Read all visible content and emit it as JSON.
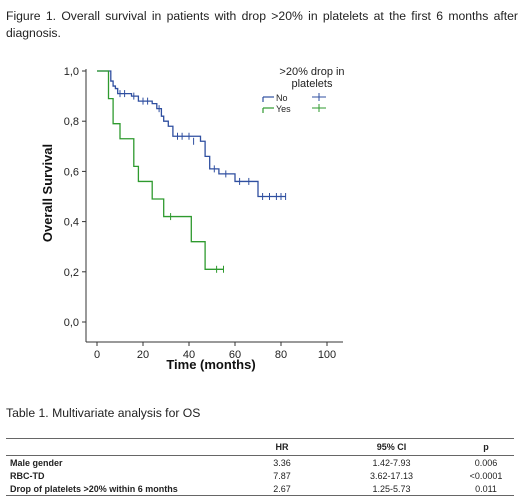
{
  "caption": "Figure 1. Overall survival in patients with drop >20% in platelets at the first 6 months after diagnosis.",
  "chart_data": {
    "type": "line",
    "ylabel": "Overall Survival",
    "xlabel": "Time (months)",
    "xlim": [
      0,
      100
    ],
    "ylim": [
      0,
      1
    ],
    "xticks": [
      "0",
      "20",
      "40",
      "60",
      "80",
      "100"
    ],
    "yticks": [
      "0,0",
      "0,2",
      "0,4",
      "0,6",
      "0,8",
      "1,0"
    ],
    "grid": false,
    "legend": {
      "title": ">20% drop in platelets",
      "placement": "top-right",
      "title_line1": ">20% drop in",
      "title_line2": "platelets"
    },
    "series": [
      {
        "name": "No",
        "color": "#2f4fa0",
        "steps": [
          [
            0,
            1.0
          ],
          [
            6,
            0.96
          ],
          [
            7,
            0.94
          ],
          [
            8,
            0.93
          ],
          [
            9,
            0.91
          ],
          [
            15,
            0.9
          ],
          [
            18,
            0.88
          ],
          [
            24,
            0.87
          ],
          [
            26,
            0.85
          ],
          [
            28,
            0.82
          ],
          [
            29,
            0.8
          ],
          [
            31,
            0.78
          ],
          [
            33,
            0.74
          ],
          [
            45,
            0.72
          ],
          [
            47,
            0.66
          ],
          [
            49,
            0.61
          ],
          [
            53,
            0.59
          ],
          [
            60,
            0.56
          ],
          [
            70,
            0.5
          ],
          [
            82,
            0.5
          ]
        ],
        "censors": [
          [
            10,
            0.91
          ],
          [
            12,
            0.91
          ],
          [
            16,
            0.9
          ],
          [
            20,
            0.88
          ],
          [
            22,
            0.88
          ],
          [
            27,
            0.85
          ],
          [
            35,
            0.74
          ],
          [
            37,
            0.74
          ],
          [
            40,
            0.74
          ],
          [
            42,
            0.72
          ],
          [
            51,
            0.61
          ],
          [
            56,
            0.59
          ],
          [
            62,
            0.56
          ],
          [
            66,
            0.56
          ],
          [
            72,
            0.5
          ],
          [
            75,
            0.5
          ],
          [
            78,
            0.5
          ],
          [
            80,
            0.5
          ],
          [
            82,
            0.5
          ]
        ]
      },
      {
        "name": "Yes",
        "color": "#2e9a2e",
        "steps": [
          [
            0,
            1.0
          ],
          [
            5,
            0.89
          ],
          [
            7,
            0.79
          ],
          [
            10,
            0.73
          ],
          [
            16,
            0.62
          ],
          [
            18,
            0.56
          ],
          [
            24,
            0.49
          ],
          [
            29,
            0.42
          ],
          [
            41,
            0.32
          ],
          [
            47,
            0.21
          ],
          [
            55,
            0.21
          ]
        ],
        "censors": [
          [
            32,
            0.42
          ],
          [
            52,
            0.21
          ],
          [
            55,
            0.21
          ]
        ]
      }
    ]
  },
  "table": {
    "title": "Table 1. Multivariate analysis for OS",
    "headers": [
      "",
      "HR",
      "95% CI",
      "p"
    ],
    "rows": [
      [
        "Male gender",
        "3.36",
        "1.42-7.93",
        "0.006"
      ],
      [
        "RBC-TD",
        "7.87",
        "3.62-17.13",
        "<0.0001"
      ],
      [
        "Drop of platelets >20% within 6 months",
        "2.67",
        "1.25-5.73",
        "0.011"
      ]
    ]
  }
}
